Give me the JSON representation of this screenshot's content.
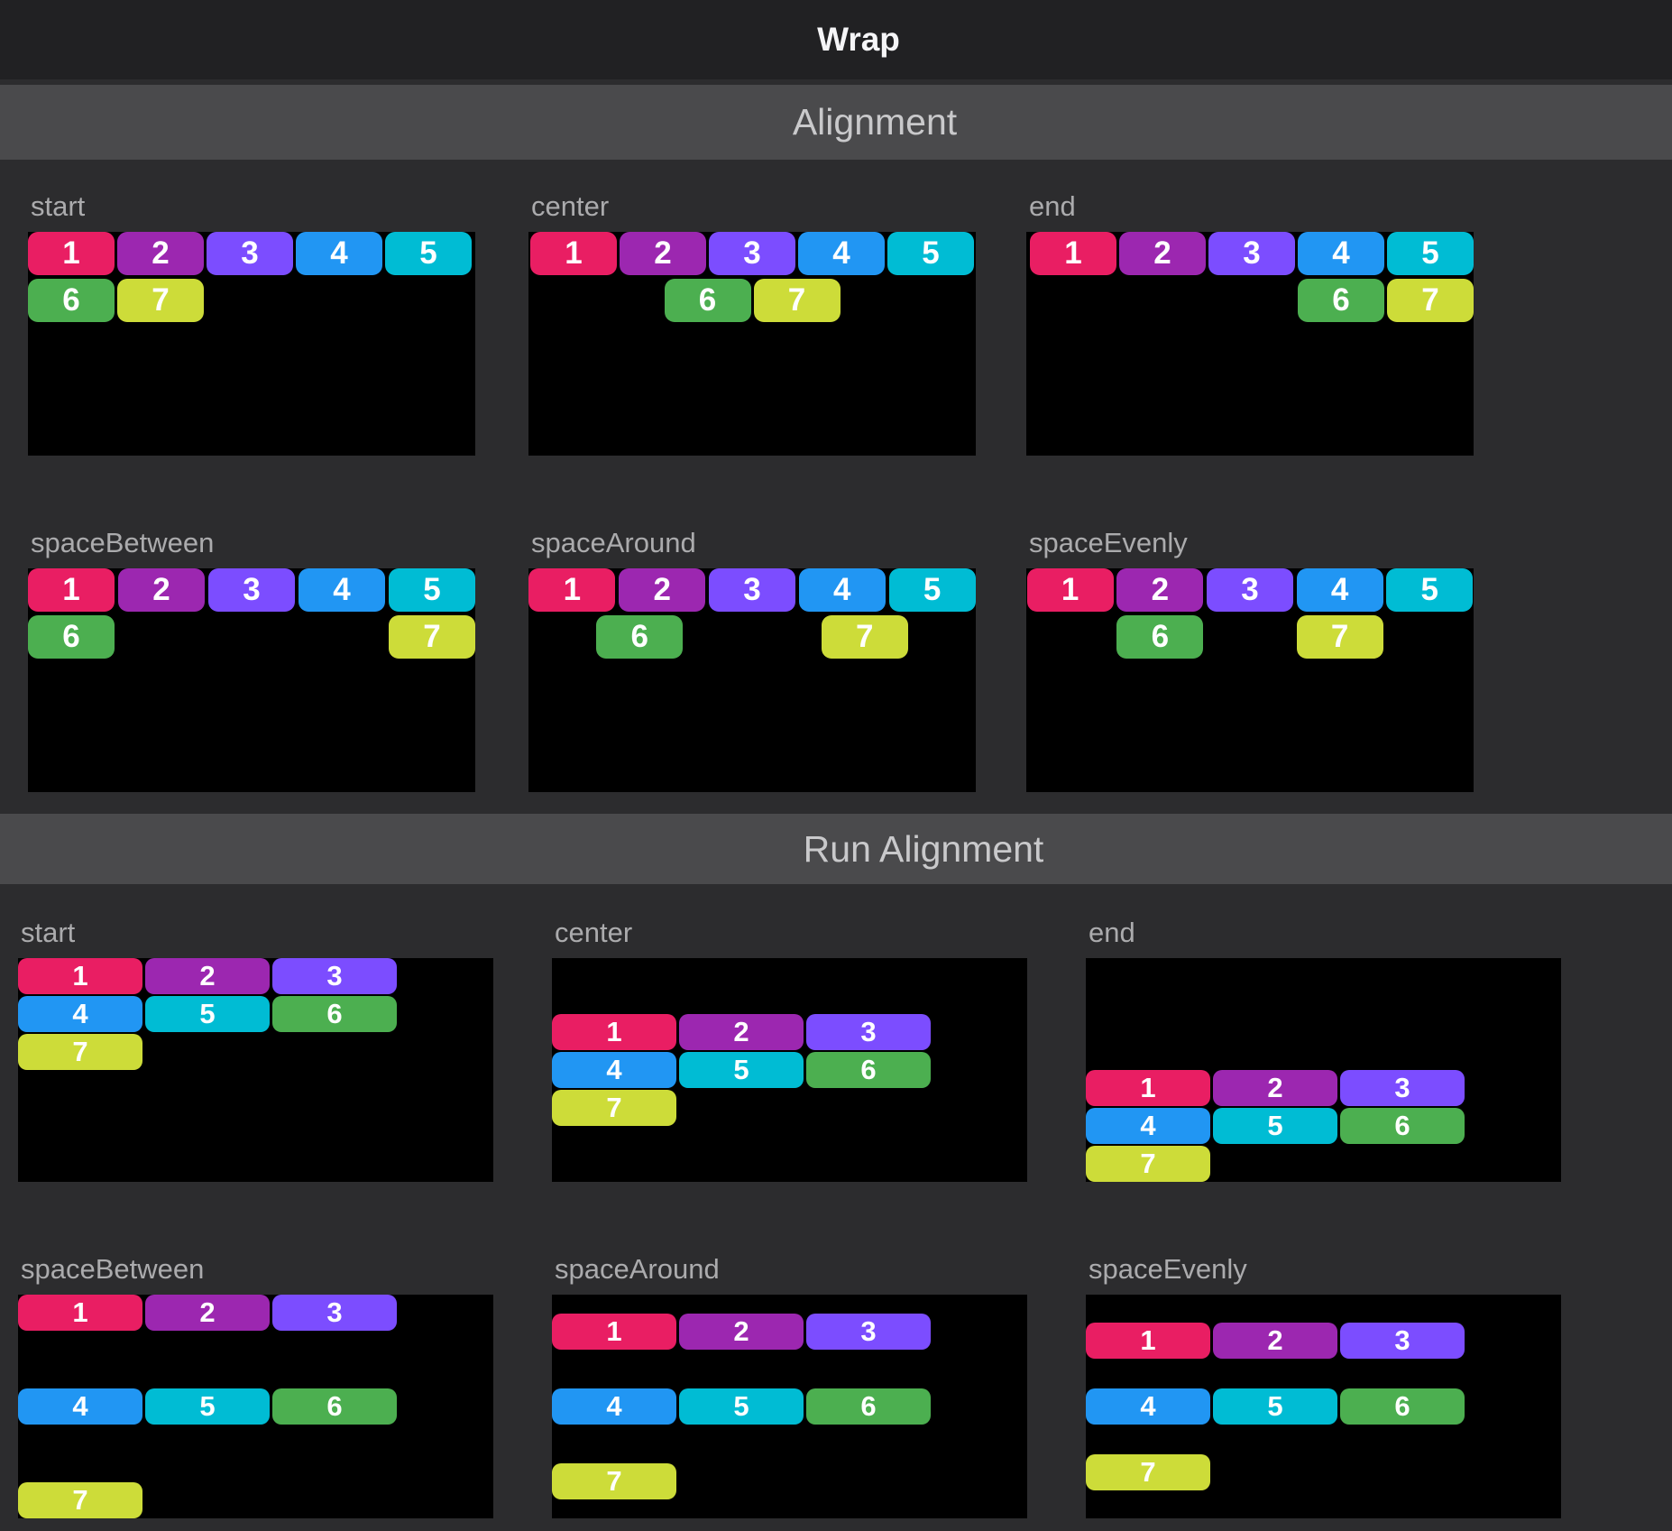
{
  "app_bar": {
    "title": "Wrap"
  },
  "sections": [
    {
      "title": "Alignment",
      "demos": [
        {
          "label": "start"
        },
        {
          "label": "center"
        },
        {
          "label": "end"
        },
        {
          "label": "spaceBetween"
        },
        {
          "label": "spaceAround"
        },
        {
          "label": "spaceEvenly"
        }
      ]
    },
    {
      "title": "Run Alignment",
      "demos": [
        {
          "label": "start"
        },
        {
          "label": "center"
        },
        {
          "label": "end"
        },
        {
          "label": "spaceBetween"
        },
        {
          "label": "spaceAround"
        },
        {
          "label": "spaceEvenly"
        }
      ]
    }
  ],
  "chips": [
    {
      "label": "1",
      "color": "#E91E63"
    },
    {
      "label": "2",
      "color": "#9C27B0"
    },
    {
      "label": "3",
      "color": "#7C4DFF"
    },
    {
      "label": "4",
      "color": "#2196F3"
    },
    {
      "label": "5",
      "color": "#00BCD4"
    },
    {
      "label": "6",
      "color": "#4CAF50"
    },
    {
      "label": "7",
      "color": "#CDDC39"
    }
  ],
  "colors": {
    "page_bg": "#2c2c2e",
    "app_bar_bg": "#212123",
    "section_bar_bg": "#4a4a4c",
    "panel_bg": "#000000",
    "app_title_text": "#f5f5f7",
    "section_title_text": "#c9c9cb",
    "label_text": "#ababad",
    "chip_text": "#ffffff"
  }
}
